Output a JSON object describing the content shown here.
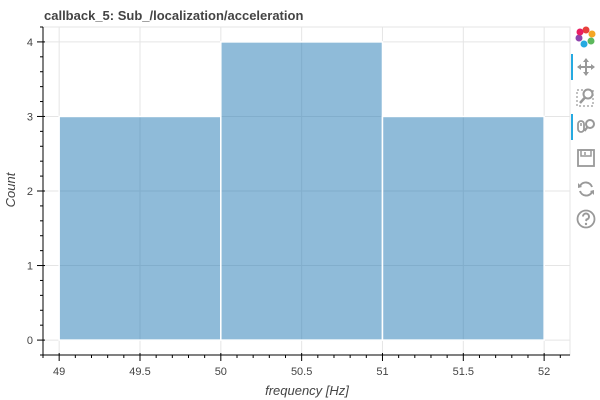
{
  "chart_data": {
    "type": "bar",
    "title": "callback_5: Sub_/localization/acceleration",
    "xlabel": "frequency [Hz]",
    "ylabel": "Count",
    "bins": [
      {
        "left": 49,
        "right": 50,
        "count": 3
      },
      {
        "left": 50,
        "right": 51,
        "count": 4
      },
      {
        "left": 51,
        "right": 52,
        "count": 3
      }
    ],
    "xlim": [
      48.9,
      52.16
    ],
    "ylim": [
      -0.2,
      4.2
    ],
    "x_ticks": [
      49,
      49.5,
      50,
      50.5,
      51,
      51.5,
      52
    ],
    "x_tick_labels": [
      "49",
      "49.5",
      "50",
      "50.5",
      "51",
      "51.5",
      "52"
    ],
    "y_ticks": [
      0,
      1,
      2,
      3,
      4
    ],
    "y_tick_labels": [
      "0",
      "1",
      "2",
      "3",
      "4"
    ],
    "grid": true,
    "bar_color": "#1f77b4",
    "bar_alpha": 0.5
  },
  "toolbar": {
    "tools": [
      {
        "name": "bokeh-logo",
        "icon": "bokeh-logo-icon",
        "active": false
      },
      {
        "name": "pan",
        "icon": "pan-icon",
        "active": true
      },
      {
        "name": "box-zoom",
        "icon": "box-zoom-icon",
        "active": false
      },
      {
        "name": "wheel-zoom",
        "icon": "wheel-zoom-icon",
        "active": true
      },
      {
        "name": "save",
        "icon": "save-icon",
        "active": false
      },
      {
        "name": "reset",
        "icon": "reset-icon",
        "active": false
      },
      {
        "name": "help",
        "icon": "help-icon",
        "active": false
      }
    ]
  }
}
